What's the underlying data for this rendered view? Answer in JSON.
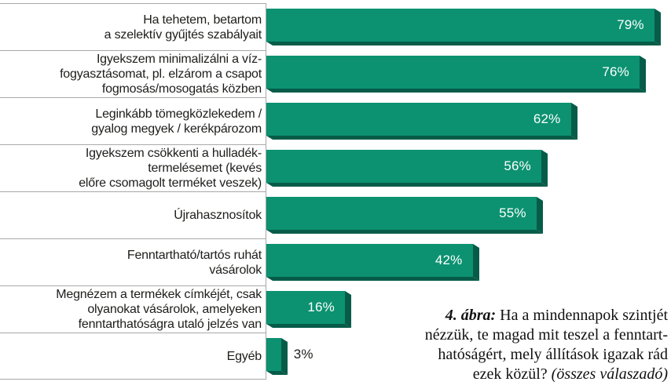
{
  "chart_data": {
    "type": "bar",
    "orientation": "horizontal",
    "unit": "%",
    "grid": "row-separators-left-column-only",
    "value_label_position": "inside-right (outside for smallest bar)",
    "categories": [
      "Ha tehetem, betartom\na szelektív gyűjtés szabályait",
      "Igyekszem minimalizálni a víz-\nfogyasztásomat, pl. elzárom a csapot\nfogmosás/mosogatás közben",
      "Leginkább tömegközlekedem /\ngyalog megyek / kerékpározom",
      "Igyekszem csökkenti a hulladék-\ntermelésemet (kevés\nelőre csomagolt terméket veszek)",
      "Újrahasznosítok",
      "Fenntartható/tartós ruhát\nvásárolok",
      "Megnézem a termékek címkéjét, csak\nolyanokat vásárolok, amelyeken\nfenntarthatóságra utaló jelzés van",
      "Egyéb"
    ],
    "values": [
      79,
      76,
      62,
      56,
      55,
      42,
      16,
      3
    ],
    "value_labels": [
      "79%",
      "76%",
      "62%",
      "56%",
      "55%",
      "42%",
      "16%",
      "3%"
    ],
    "xlim": [
      0,
      82
    ]
  },
  "caption": {
    "lines": [
      [
        {
          "text": "4. ábra:",
          "style": "bold-italic"
        },
        {
          "text": " Ha a mindennapok szintjét",
          "style": "normal"
        }
      ],
      [
        {
          "text": "nézzük, te magad mit teszel a fenntart-",
          "style": "normal"
        }
      ],
      [
        {
          "text": "hatóságért, mely állítások igazak rád",
          "style": "normal"
        }
      ],
      [
        {
          "text": "ezek közül? ",
          "style": "normal"
        },
        {
          "text": "(összes válaszadó)",
          "style": "italic"
        }
      ]
    ]
  },
  "colors": {
    "bar": "#0C9271",
    "bar_shadow": "#065C48",
    "label_text": "#1D1D1B",
    "grid_line": "#A8A8A8",
    "value_text_inside": "#FFFFFF",
    "value_text_outside": "#1D1D1B"
  }
}
